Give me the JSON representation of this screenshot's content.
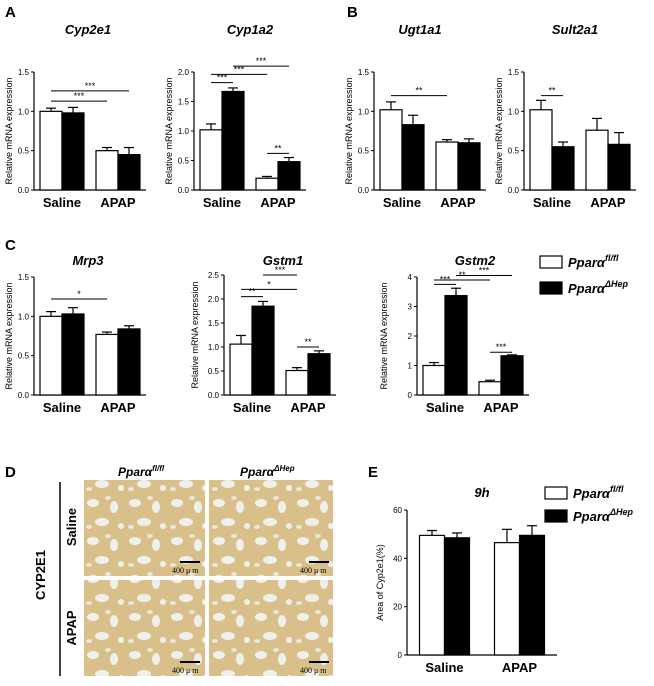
{
  "panel_labels": {
    "A": "A",
    "B": "B",
    "C": "C",
    "D": "D",
    "E": "E"
  },
  "legend": {
    "items": [
      {
        "base": "Pparα",
        "sup": "fl/fl",
        "fill": "#ffffff"
      },
      {
        "base": "Pparα",
        "sup": "ΔHep",
        "fill": "#000000"
      }
    ]
  },
  "histology": {
    "col_labels": [
      {
        "base": "Pparα",
        "sup": "fl/fl"
      },
      {
        "base": "Pparα",
        "sup": "ΔHep"
      }
    ],
    "row_labels": [
      "Saline",
      "APAP"
    ],
    "side_label": "CYP2E1",
    "scale_label": "400 μ m"
  },
  "chart_data": [
    {
      "type": "bar",
      "title": "Cyp2e1",
      "ylabel": "Relative mRNA expression",
      "categories": [
        "Saline",
        "APAP"
      ],
      "ylim": [
        0,
        1.5
      ],
      "yticks": [
        0.0,
        0.5,
        1.0,
        1.5
      ],
      "series": [
        {
          "values": [
            1.0,
            0.5
          ],
          "err": [
            0.04,
            0.04
          ]
        },
        {
          "values": [
            0.98,
            0.45
          ],
          "err": [
            0.07,
            0.09
          ]
        }
      ],
      "annotations": [
        "***",
        "***"
      ]
    },
    {
      "type": "bar",
      "title": "Cyp1a2",
      "ylabel": "Relative mRNA expression",
      "categories": [
        "Saline",
        "APAP"
      ],
      "ylim": [
        0,
        2.0
      ],
      "yticks": [
        0.0,
        0.5,
        1.0,
        1.5,
        2.0
      ],
      "series": [
        {
          "values": [
            1.02,
            0.2
          ],
          "err": [
            0.1,
            0.03
          ]
        },
        {
          "values": [
            1.67,
            0.48
          ],
          "err": [
            0.06,
            0.07
          ]
        }
      ],
      "annotations": [
        "***",
        "***",
        "***",
        "**"
      ]
    },
    {
      "type": "bar",
      "title": "Ugt1a1",
      "ylabel": "Relative mRNA expression",
      "categories": [
        "Saline",
        "APAP"
      ],
      "ylim": [
        0,
        1.5
      ],
      "yticks": [
        0.0,
        0.5,
        1.0,
        1.5
      ],
      "series": [
        {
          "values": [
            1.02,
            0.61
          ],
          "err": [
            0.1,
            0.03
          ]
        },
        {
          "values": [
            0.83,
            0.6
          ],
          "err": [
            0.12,
            0.05
          ]
        }
      ],
      "annotations": [
        "**"
      ]
    },
    {
      "type": "bar",
      "title": "Sult2a1",
      "ylabel": "Relative mRNA expression",
      "categories": [
        "Saline",
        "APAP"
      ],
      "ylim": [
        0,
        1.5
      ],
      "yticks": [
        0.0,
        0.5,
        1.0,
        1.5
      ],
      "series": [
        {
          "values": [
            1.02,
            0.76
          ],
          "err": [
            0.12,
            0.15
          ]
        },
        {
          "values": [
            0.55,
            0.58
          ],
          "err": [
            0.06,
            0.15
          ]
        }
      ],
      "annotations": [
        "**"
      ]
    },
    {
      "type": "bar",
      "title": "Mrp3",
      "ylabel": "Relative mRNA expression",
      "categories": [
        "Saline",
        "APAP"
      ],
      "ylim": [
        0,
        1.5
      ],
      "yticks": [
        0.0,
        0.5,
        1.0,
        1.5
      ],
      "series": [
        {
          "values": [
            1.0,
            0.77
          ],
          "err": [
            0.06,
            0.03
          ]
        },
        {
          "values": [
            1.03,
            0.84
          ],
          "err": [
            0.08,
            0.04
          ]
        }
      ],
      "annotations": [
        "*"
      ]
    },
    {
      "type": "bar",
      "title": "Gstm1",
      "ylabel": "Relative mRNA expression",
      "categories": [
        "Saline",
        "APAP"
      ],
      "ylim": [
        0,
        2.5
      ],
      "yticks": [
        0.0,
        0.5,
        1.0,
        1.5,
        2.0,
        2.5
      ],
      "series": [
        {
          "values": [
            1.06,
            0.51
          ],
          "err": [
            0.18,
            0.06
          ]
        },
        {
          "values": [
            1.85,
            0.86
          ],
          "err": [
            0.1,
            0.06
          ]
        }
      ],
      "annotations": [
        "**",
        "*",
        "***",
        "**"
      ]
    },
    {
      "type": "bar",
      "title": "Gstm2",
      "ylabel": "Relative mRNA expression",
      "categories": [
        "Saline",
        "APAP"
      ],
      "ylim": [
        0,
        4
      ],
      "yticks": [
        0,
        1,
        2,
        3,
        4
      ],
      "series": [
        {
          "values": [
            1.0,
            0.45
          ],
          "err": [
            0.1,
            0.05
          ]
        },
        {
          "values": [
            3.37,
            1.33
          ],
          "err": [
            0.25,
            0.03
          ]
        }
      ],
      "annotations": [
        "***",
        "**",
        "***",
        "***"
      ]
    },
    {
      "type": "bar",
      "title": "9h",
      "ylabel": "Area of Cyp2e1(%)",
      "categories": [
        "Saline",
        "APAP"
      ],
      "ylim": [
        0,
        60
      ],
      "yticks": [
        0,
        20,
        40,
        60
      ],
      "series": [
        {
          "values": [
            49.5,
            46.5
          ],
          "err": [
            2.0,
            5.5
          ]
        },
        {
          "values": [
            48.5,
            49.5
          ],
          "err": [
            2.0,
            4.0
          ]
        }
      ],
      "annotations": []
    }
  ]
}
